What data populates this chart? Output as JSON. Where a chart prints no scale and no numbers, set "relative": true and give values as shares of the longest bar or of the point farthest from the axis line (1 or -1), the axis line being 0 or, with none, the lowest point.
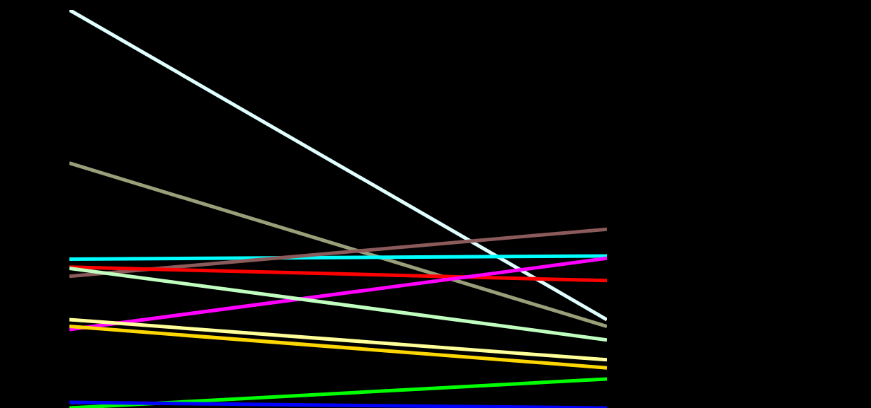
{
  "chart_data": {
    "type": "line",
    "relative": true,
    "categories": [
      null,
      null
    ],
    "marker": "none",
    "series": [
      {
        "color": "#e0ffff",
        "values": [
          1,
          0.222
        ]
      },
      {
        "color": "#9a9f7a",
        "values": [
          0.615,
          0.205
        ]
      },
      {
        "color": "#00ffff",
        "values": [
          0.374,
          0.382
        ]
      },
      {
        "color": "#8b5a5a",
        "values": [
          0.331,
          0.449
        ]
      },
      {
        "color": "#ff0000",
        "values": [
          0.354,
          0.32
        ]
      },
      {
        "color": "#ff00ff",
        "values": [
          0.197,
          0.376
        ]
      },
      {
        "color": "#c0ffc0",
        "values": [
          0.351,
          0.171
        ]
      },
      {
        "color": "#ffff99",
        "values": [
          0.222,
          0.121
        ]
      },
      {
        "color": "#ffd700",
        "values": [
          0.205,
          0.101
        ]
      },
      {
        "color": "#00ff00",
        "values": [
          0,
          0.073
        ]
      },
      {
        "color": "#0000ff",
        "values": [
          0.014,
          0
        ]
      }
    ]
  }
}
